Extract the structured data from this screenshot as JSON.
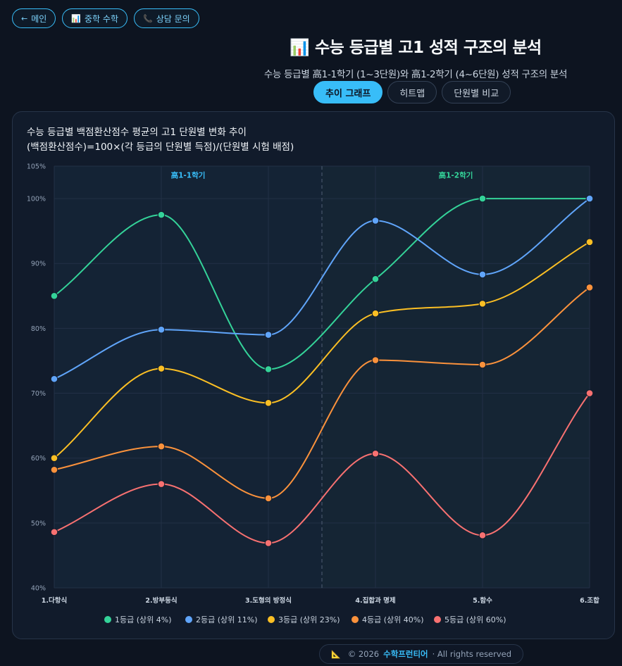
{
  "nav": {
    "home": {
      "icon": "←",
      "label": "메인"
    },
    "math": {
      "icon": "📊",
      "label": "중학 수학"
    },
    "contact": {
      "icon": "📞",
      "label": "상담 문의"
    }
  },
  "header": {
    "icon": "📊",
    "title": "수능 등급별 고1 성적 구조의 분석",
    "subtitle": "수능 등급별 高1-1학기 (1~3단원)와 高1-2학기 (4~6단원) 성적 구조의 분석"
  },
  "tabs": [
    {
      "label": "추이 그래프",
      "active": true
    },
    {
      "label": "히트맵",
      "active": false
    },
    {
      "label": "단원별 비교",
      "active": false
    }
  ],
  "chart_data": {
    "type": "line",
    "title": "수능 등급별 백점환산점수 평균의 고1 단원별 변화 추이",
    "subtitle": "(백점환산점수)=100×(각 등급의 단원별 득점)/(단원별 시험 배점)",
    "categories": [
      "1.다항식",
      "2.방부등식",
      "3.도형의 방정식",
      "4.집합과 명제",
      "5.함수",
      "6.조합"
    ],
    "ylim": [
      40,
      105
    ],
    "yticks": [
      "40%",
      "50%",
      "60%",
      "70%",
      "80%",
      "90%",
      "100%",
      "105%"
    ],
    "ytick_values": [
      40,
      50,
      60,
      70,
      80,
      90,
      100,
      105
    ],
    "semesters": [
      {
        "label": "高1-1학기",
        "color": "#38bdf8",
        "from": 0,
        "to": 2.5
      },
      {
        "label": "高1-2학기",
        "color": "#34d399",
        "from": 2.5,
        "to": 5
      }
    ],
    "series": [
      {
        "name": "1등급 (상위 4%)",
        "color": "#34d399",
        "values": [
          85,
          97.5,
          73.7,
          87.6,
          100,
          100
        ]
      },
      {
        "name": "2등급 (상위 11%)",
        "color": "#60a5fa",
        "values": [
          72.2,
          79.8,
          79,
          96.6,
          88.3,
          100
        ]
      },
      {
        "name": "3등급 (상위 23%)",
        "color": "#fbbf24",
        "values": [
          60,
          73.8,
          68.5,
          82.3,
          83.8,
          93.3
        ]
      },
      {
        "name": "4등급 (상위 40%)",
        "color": "#fb923c",
        "values": [
          58.2,
          61.8,
          53.8,
          75.1,
          74.4,
          86.3
        ]
      },
      {
        "name": "5등급 (상위 60%)",
        "color": "#f87171",
        "values": [
          48.6,
          56,
          46.9,
          60.7,
          48.1,
          70
        ]
      }
    ],
    "legend_position": "bottom"
  },
  "footer": {
    "icon": "📐",
    "copyright": "© 2026",
    "brand": "수학프런티어",
    "rights": "· All rights reserved"
  }
}
